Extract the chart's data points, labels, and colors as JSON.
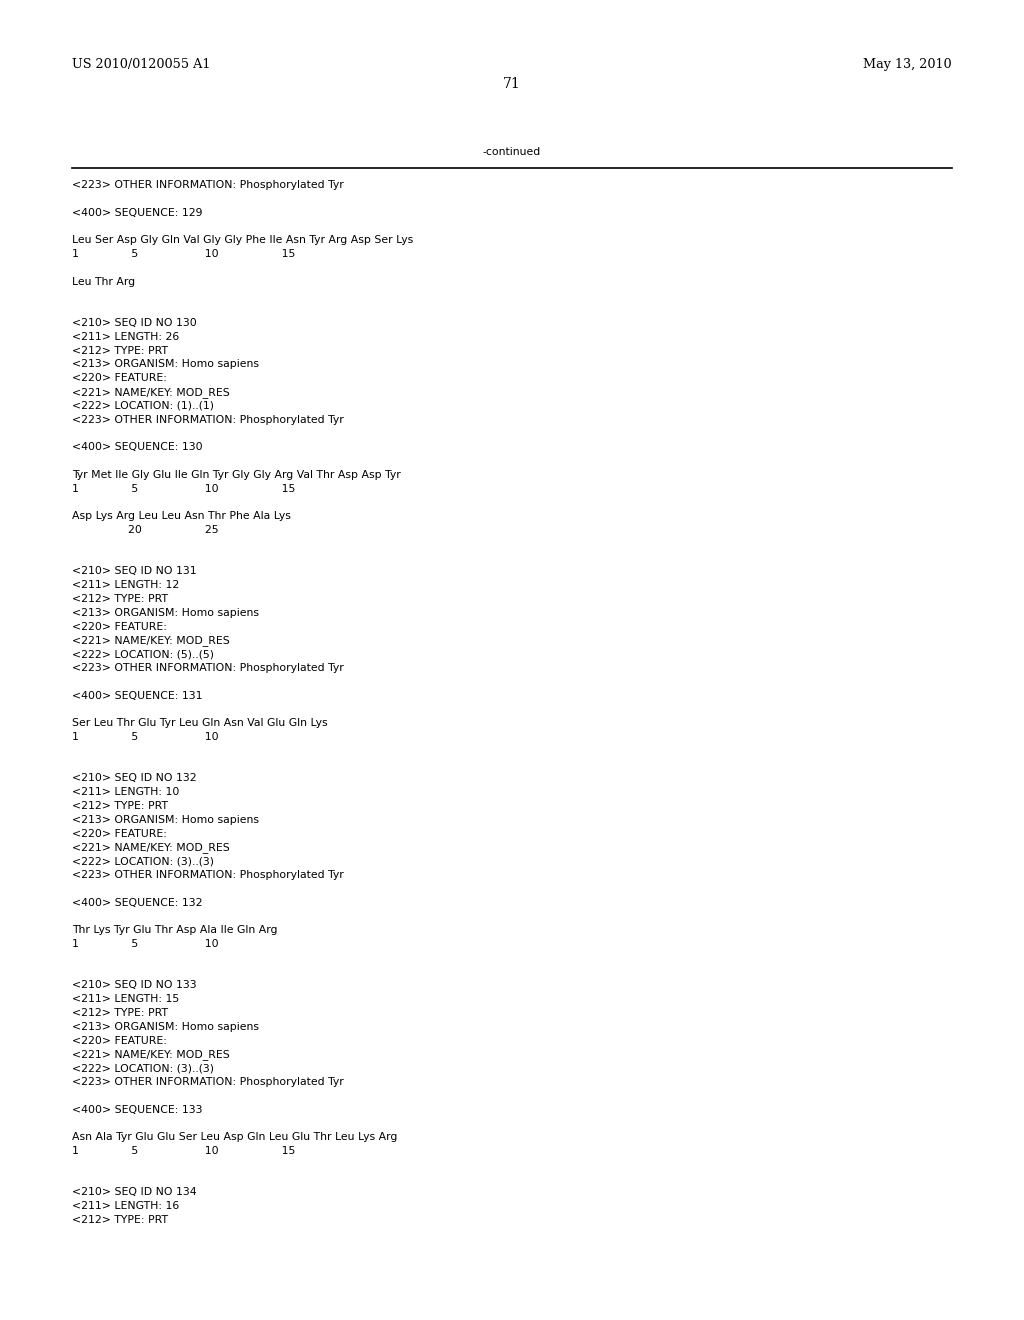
{
  "header_left": "US 2010/0120055 A1",
  "header_right": "May 13, 2010",
  "page_number": "71",
  "continued_label": "-continued",
  "background_color": "#ffffff",
  "text_color": "#000000",
  "body_font_size": 7.8,
  "header_font_size": 9.2,
  "page_num_font_size": 10.0,
  "lines": [
    "<223> OTHER INFORMATION: Phosphorylated Tyr",
    "",
    "<400> SEQUENCE: 129",
    "",
    "Leu Ser Asp Gly Gln Val Gly Gly Phe Ile Asn Tyr Arg Asp Ser Lys",
    "1               5                   10                  15",
    "",
    "Leu Thr Arg",
    "",
    "",
    "<210> SEQ ID NO 130",
    "<211> LENGTH: 26",
    "<212> TYPE: PRT",
    "<213> ORGANISM: Homo sapiens",
    "<220> FEATURE:",
    "<221> NAME/KEY: MOD_RES",
    "<222> LOCATION: (1)..(1)",
    "<223> OTHER INFORMATION: Phosphorylated Tyr",
    "",
    "<400> SEQUENCE: 130",
    "",
    "Tyr Met Ile Gly Glu Ile Gln Tyr Gly Gly Arg Val Thr Asp Asp Tyr",
    "1               5                   10                  15",
    "",
    "Asp Lys Arg Leu Leu Asn Thr Phe Ala Lys",
    "                20                  25",
    "",
    "",
    "<210> SEQ ID NO 131",
    "<211> LENGTH: 12",
    "<212> TYPE: PRT",
    "<213> ORGANISM: Homo sapiens",
    "<220> FEATURE:",
    "<221> NAME/KEY: MOD_RES",
    "<222> LOCATION: (5)..(5)",
    "<223> OTHER INFORMATION: Phosphorylated Tyr",
    "",
    "<400> SEQUENCE: 131",
    "",
    "Ser Leu Thr Glu Tyr Leu Gln Asn Val Glu Gln Lys",
    "1               5                   10",
    "",
    "",
    "<210> SEQ ID NO 132",
    "<211> LENGTH: 10",
    "<212> TYPE: PRT",
    "<213> ORGANISM: Homo sapiens",
    "<220> FEATURE:",
    "<221> NAME/KEY: MOD_RES",
    "<222> LOCATION: (3)..(3)",
    "<223> OTHER INFORMATION: Phosphorylated Tyr",
    "",
    "<400> SEQUENCE: 132",
    "",
    "Thr Lys Tyr Glu Thr Asp Ala Ile Gln Arg",
    "1               5                   10",
    "",
    "",
    "<210> SEQ ID NO 133",
    "<211> LENGTH: 15",
    "<212> TYPE: PRT",
    "<213> ORGANISM: Homo sapiens",
    "<220> FEATURE:",
    "<221> NAME/KEY: MOD_RES",
    "<222> LOCATION: (3)..(3)",
    "<223> OTHER INFORMATION: Phosphorylated Tyr",
    "",
    "<400> SEQUENCE: 133",
    "",
    "Asn Ala Tyr Glu Glu Ser Leu Asp Gln Leu Glu Thr Leu Lys Arg",
    "1               5                   10                  15",
    "",
    "",
    "<210> SEQ ID NO 134",
    "<211> LENGTH: 16",
    "<212> TYPE: PRT"
  ]
}
